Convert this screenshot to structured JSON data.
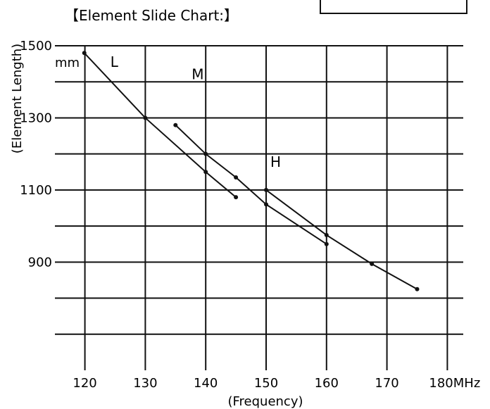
{
  "chart_data": {
    "type": "line",
    "title": "【Element Slide Chart:】",
    "xlabel": "(Frequency)",
    "ylabel": "(Element Length)",
    "y_unit_label": "mm",
    "x_unit_suffix": "MHz",
    "x_ticks": [
      120,
      130,
      140,
      150,
      160,
      170,
      180
    ],
    "x_tick_labels": [
      "120",
      "130",
      "140",
      "150",
      "160",
      "170",
      "180MHz"
    ],
    "y_tick_labels": [
      "1500",
      "1300",
      "1100",
      "900"
    ],
    "y_tick_values": [
      1500,
      1300,
      1100,
      900
    ],
    "xlim": [
      120,
      180
    ],
    "ylim": [
      600,
      1500
    ],
    "grid": true,
    "legend": "none",
    "series": [
      {
        "name": "L",
        "points": [
          {
            "x": 119.9,
            "y": 1480
          },
          {
            "x": 130,
            "y": 1300
          },
          {
            "x": 140,
            "y": 1150
          },
          {
            "x": 145,
            "y": 1080
          }
        ]
      },
      {
        "name": "M",
        "points": [
          {
            "x": 135,
            "y": 1280
          },
          {
            "x": 140,
            "y": 1200
          },
          {
            "x": 145,
            "y": 1135
          },
          {
            "x": 150,
            "y": 1060
          },
          {
            "x": 160,
            "y": 950
          }
        ]
      },
      {
        "name": "H",
        "points": [
          {
            "x": 150,
            "y": 1100
          },
          {
            "x": 160,
            "y": 975
          },
          {
            "x": 167.5,
            "y": 895
          },
          {
            "x": 175,
            "y": 825
          }
        ]
      }
    ],
    "colors": {
      "line": "#111111",
      "grid": "#111111",
      "background": "#ffffff"
    }
  }
}
